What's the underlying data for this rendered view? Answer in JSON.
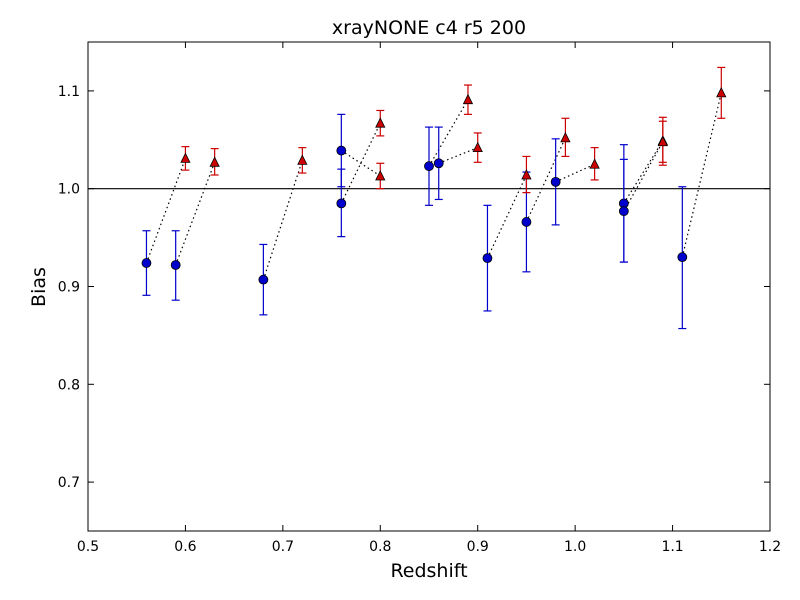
{
  "chart_data": {
    "type": "scatter",
    "title": "xrayNONE c4 r5 200",
    "xlabel": "Redshift",
    "ylabel": "Bias",
    "xlim": [
      0.5,
      1.2
    ],
    "ylim": [
      0.65,
      1.15
    ],
    "xticks": [
      "0.5",
      "0.6",
      "0.7",
      "0.8",
      "0.9",
      "1.0",
      "1.1",
      "1.2"
    ],
    "yticks": [
      "0.7",
      "0.8",
      "0.9",
      "1.0",
      "1.1"
    ],
    "reference_line": 1.0,
    "grid": false,
    "series": [
      {
        "marker": "circle",
        "color": "#0000cc",
        "points": [
          {
            "x": 0.56,
            "y": 0.924,
            "lo": 0.891,
            "hi": 0.957
          },
          {
            "x": 0.59,
            "y": 0.922,
            "lo": 0.886,
            "hi": 0.957
          },
          {
            "x": 0.68,
            "y": 0.907,
            "lo": 0.871,
            "hi": 0.943
          },
          {
            "x": 0.76,
            "y": 1.039,
            "lo": 1.002,
            "hi": 1.076
          },
          {
            "x": 0.76,
            "y": 0.985,
            "lo": 0.951,
            "hi": 1.02
          },
          {
            "x": 0.85,
            "y": 1.023,
            "lo": 0.983,
            "hi": 1.063
          },
          {
            "x": 0.86,
            "y": 1.026,
            "lo": 0.989,
            "hi": 1.063
          },
          {
            "x": 0.91,
            "y": 0.929,
            "lo": 0.875,
            "hi": 0.983
          },
          {
            "x": 0.95,
            "y": 0.966,
            "lo": 0.915,
            "hi": 1.017
          },
          {
            "x": 0.98,
            "y": 1.007,
            "lo": 0.963,
            "hi": 1.051
          },
          {
            "x": 1.05,
            "y": 0.985,
            "lo": 0.925,
            "hi": 1.045
          },
          {
            "x": 1.05,
            "y": 0.977,
            "lo": 0.925,
            "hi": 1.03
          },
          {
            "x": 1.11,
            "y": 0.93,
            "lo": 0.857,
            "hi": 1.002
          }
        ]
      },
      {
        "marker": "triangle",
        "color": "#cc0000",
        "points": [
          {
            "x": 0.6,
            "y": 1.031,
            "lo": 1.019,
            "hi": 1.043
          },
          {
            "x": 0.63,
            "y": 1.027,
            "lo": 1.014,
            "hi": 1.041
          },
          {
            "x": 0.72,
            "y": 1.029,
            "lo": 1.016,
            "hi": 1.042
          },
          {
            "x": 0.8,
            "y": 1.067,
            "lo": 1.054,
            "hi": 1.08
          },
          {
            "x": 0.8,
            "y": 1.013,
            "lo": 1.0,
            "hi": 1.026
          },
          {
            "x": 0.89,
            "y": 1.091,
            "lo": 1.076,
            "hi": 1.106
          },
          {
            "x": 0.9,
            "y": 1.042,
            "lo": 1.027,
            "hi": 1.057
          },
          {
            "x": 0.95,
            "y": 1.014,
            "lo": 0.996,
            "hi": 1.033
          },
          {
            "x": 0.99,
            "y": 1.052,
            "lo": 1.033,
            "hi": 1.072
          },
          {
            "x": 1.02,
            "y": 1.025,
            "lo": 1.009,
            "hi": 1.042
          },
          {
            "x": 1.09,
            "y": 1.049,
            "lo": 1.024,
            "hi": 1.073
          },
          {
            "x": 1.09,
            "y": 1.048,
            "lo": 1.027,
            "hi": 1.069
          },
          {
            "x": 1.15,
            "y": 1.098,
            "lo": 1.072,
            "hi": 1.124
          }
        ]
      }
    ],
    "connections": [
      [
        0.56,
        0.924,
        0.6,
        1.031
      ],
      [
        0.59,
        0.922,
        0.63,
        1.027
      ],
      [
        0.68,
        0.907,
        0.72,
        1.029
      ],
      [
        0.76,
        1.039,
        0.8,
        1.013
      ],
      [
        0.76,
        0.985,
        0.8,
        1.067
      ],
      [
        0.85,
        1.023,
        0.89,
        1.091
      ],
      [
        0.86,
        1.026,
        0.9,
        1.042
      ],
      [
        0.91,
        0.929,
        0.95,
        1.014
      ],
      [
        0.95,
        0.966,
        0.99,
        1.052
      ],
      [
        0.98,
        1.007,
        1.02,
        1.025
      ],
      [
        1.05,
        0.985,
        1.09,
        1.049
      ],
      [
        1.05,
        0.977,
        1.09,
        1.048
      ],
      [
        1.11,
        0.93,
        1.15,
        1.098
      ]
    ]
  }
}
